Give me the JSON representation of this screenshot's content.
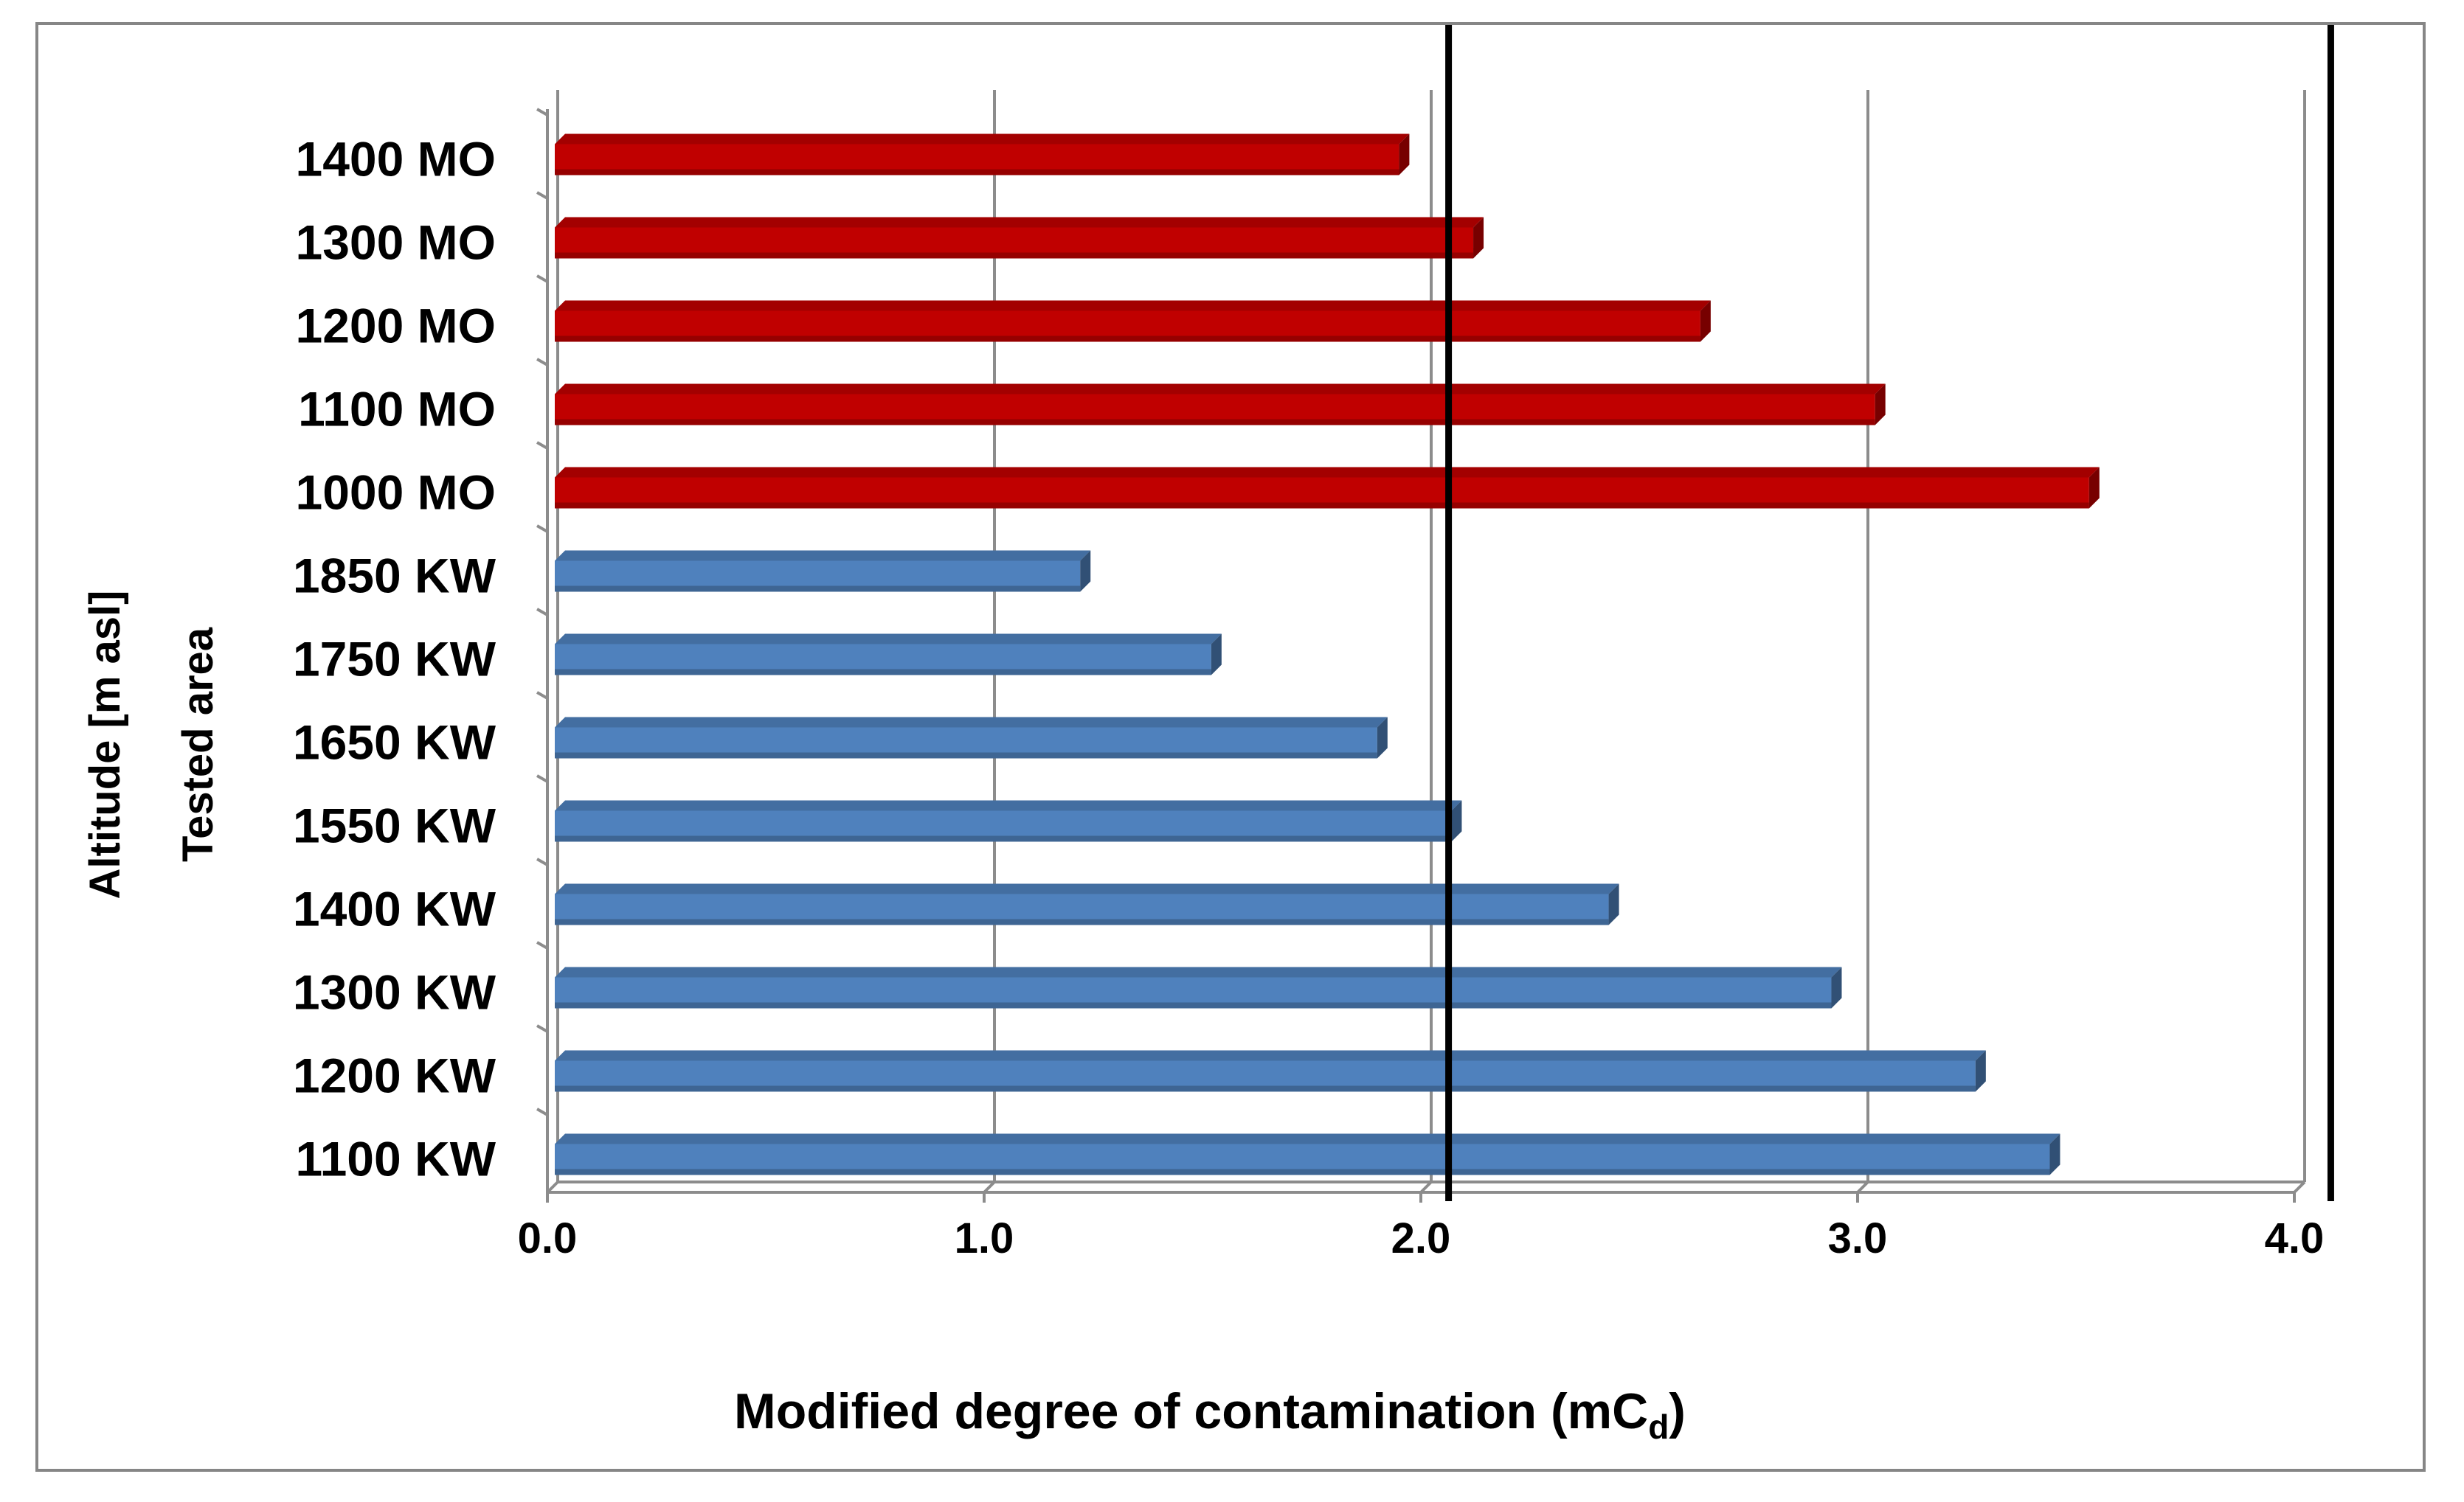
{
  "chart_data": {
    "type": "bar",
    "orientation": "horizontal",
    "categories": [
      "1400 MO",
      "1300 MO",
      "1200 MO",
      "1100 MO",
      "1000 MO",
      "1850 KW",
      "1750 KW",
      "1650 KW",
      "1550 KW",
      "1400 KW",
      "1300 KW",
      "1200 KW",
      "1100 KW"
    ],
    "values": [
      1.95,
      2.12,
      2.64,
      3.04,
      3.53,
      1.22,
      1.52,
      1.9,
      2.07,
      2.43,
      2.94,
      3.27,
      3.44
    ],
    "groups": [
      {
        "name": "MO",
        "color": "#C00000",
        "categories": [
          "1400 MO",
          "1300 MO",
          "1200 MO",
          "1100 MO",
          "1000 MO"
        ]
      },
      {
        "name": "KW",
        "color": "#4F81BD",
        "categories": [
          "1850 KW",
          "1750 KW",
          "1650 KW",
          "1550 KW",
          "1400 KW",
          "1300 KW",
          "1200 KW",
          "1100 KW"
        ]
      }
    ],
    "reference_lines": [
      2.05,
      4.07
    ],
    "xlim": [
      0,
      4
    ],
    "xticks": [
      "0.0",
      "1.0",
      "2.0",
      "3.0",
      "4.0"
    ],
    "grid": true,
    "ylabel_lines": [
      "Altitude [m asl]",
      "Tested area"
    ],
    "xlabel": {
      "main": "Modified degree of contamination (mC",
      "subscript": "d",
      "close": ")"
    },
    "title": ""
  }
}
